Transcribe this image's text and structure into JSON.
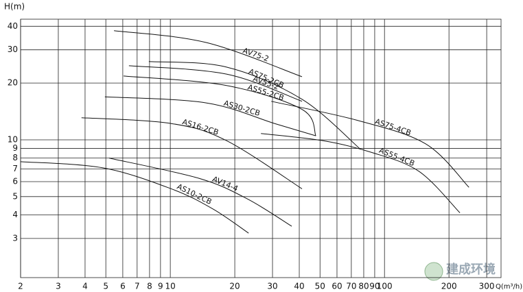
{
  "chart_data": {
    "type": "line",
    "xlabel": "Q(m³/h)",
    "ylabel": "H(m)",
    "watermark": "建成环境",
    "xscale": "log",
    "yscale": "log",
    "grid": true,
    "color": "#111111",
    "xlim": [
      2,
      350
    ],
    "ylim": [
      1.86,
      43.6
    ],
    "xticks": [
      2,
      3,
      4,
      5,
      6,
      7,
      8,
      9,
      10,
      20,
      30,
      40,
      50,
      60,
      70,
      80,
      90,
      100,
      200,
      300
    ],
    "yticks": [
      3,
      4,
      5,
      6,
      7,
      8,
      9,
      10,
      20,
      30,
      40
    ],
    "series": [
      {
        "name": "AV75-2",
        "x": [
          5.46,
          14.7,
          41.2
        ],
        "values": [
          37.9,
          32.8,
          21.6
        ]
      },
      {
        "name": "AS75-2CB",
        "x": [
          7.94,
          18.3,
          41.2,
          77.3
        ],
        "values": [
          26.0,
          24.3,
          16.4,
          8.9
        ]
      },
      {
        "name": "AV55-2",
        "x": [
          6.41,
          18.3,
          41.2
        ],
        "values": [
          24.7,
          22.3,
          16.0
        ]
      },
      {
        "name": "AS55-2CB",
        "x": [
          6.05,
          18.3,
          41.2,
          47.8
        ],
        "values": [
          21.8,
          19.4,
          14.5,
          10.5
        ]
      },
      {
        "name": "AS30-2CB",
        "x": [
          4.95,
          14.7,
          30.7,
          47.8
        ],
        "values": [
          16.9,
          15.7,
          12.2,
          10.5
        ]
      },
      {
        "name": "AS16-2CB",
        "x": [
          3.85,
          10.1,
          18.3,
          41.2
        ],
        "values": [
          13.1,
          12.2,
          9.9,
          5.5
        ]
      },
      {
        "name": "AV14-4",
        "x": [
          5.18,
          13.6,
          22.9,
          36.9
        ],
        "values": [
          8.0,
          6.25,
          4.86,
          3.48
        ]
      },
      {
        "name": "AS10-2CB",
        "x": [
          2,
          4.85,
          10.1,
          15.8,
          23.2
        ],
        "values": [
          7.66,
          7.1,
          5.5,
          4.3,
          3.2
        ]
      },
      {
        "name": "AS75-4CB",
        "x": [
          29.6,
          74.3,
          156,
          248
        ],
        "values": [
          16.0,
          12.7,
          9.5,
          5.6
        ]
      },
      {
        "name": "AS55-4CB",
        "x": [
          26.5,
          51.4,
          86.3,
          145,
          225
        ],
        "values": [
          10.8,
          9.9,
          8.6,
          6.8,
          4.1
        ]
      }
    ]
  }
}
